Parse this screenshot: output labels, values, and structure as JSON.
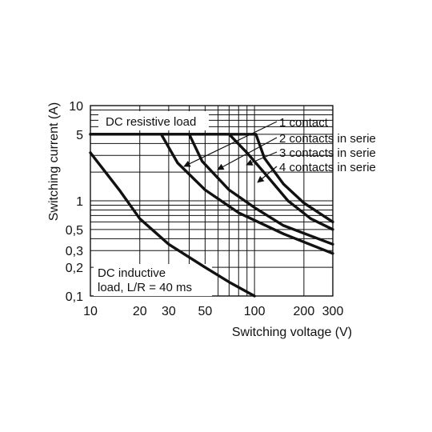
{
  "chart_data": {
    "type": "line",
    "x_scale": "log",
    "y_scale": "log",
    "xlim": [
      10,
      300
    ],
    "ylim": [
      0.1,
      10
    ],
    "xlabel": "Switching voltage (V)",
    "ylabel": "Switching current (A)",
    "x_ticks": [
      {
        "v": 10,
        "label": "10"
      },
      {
        "v": 20,
        "label": "20"
      },
      {
        "v": 30,
        "label": "30"
      },
      {
        "v": 50,
        "label": "50"
      },
      {
        "v": 100,
        "label": "100"
      },
      {
        "v": 200,
        "label": "200"
      },
      {
        "v": 300,
        "label": "300"
      }
    ],
    "y_ticks": [
      {
        "v": 10,
        "label": "10"
      },
      {
        "v": 5,
        "label": "5"
      },
      {
        "v": 1,
        "label": "1"
      },
      {
        "v": 0.5,
        "label": "0,5"
      },
      {
        "v": 0.3,
        "label": "0,3"
      },
      {
        "v": 0.2,
        "label": "0,2"
      },
      {
        "v": 0.1,
        "label": "0,1"
      }
    ],
    "x_grid": [
      20,
      30,
      40,
      50,
      60,
      70,
      80,
      90,
      100,
      200,
      300
    ],
    "y_grid": [
      0.2,
      0.3,
      0.4,
      0.5,
      0.6,
      0.7,
      0.8,
      0.9,
      1,
      2,
      3,
      4,
      5,
      6,
      7,
      8,
      9,
      10
    ],
    "series": [
      {
        "name": "1 contact",
        "x": [
          10,
          70,
          90,
          120,
          160,
          220,
          300
        ],
        "y": [
          5,
          5,
          3.2,
          1.8,
          1.0,
          0.65,
          0.5
        ]
      },
      {
        "name": "2 contacts in serie",
        "x": [
          10,
          102,
          115,
          150,
          200,
          300
        ],
        "y": [
          5,
          5,
          2.8,
          1.5,
          0.95,
          0.6
        ]
      },
      {
        "name": "3 contacts in serie",
        "x": [
          40,
          48,
          70,
          100,
          150,
          300
        ],
        "y": [
          5,
          2.6,
          1.3,
          0.85,
          0.55,
          0.35
        ]
      },
      {
        "name": "4 contacts in serie",
        "x": [
          27,
          34,
          50,
          80,
          150,
          300
        ],
        "y": [
          5,
          2.5,
          1.3,
          0.75,
          0.45,
          0.28
        ]
      },
      {
        "name": "DC inductive load, L/R = 40 ms",
        "x": [
          10,
          15,
          20,
          30,
          50,
          70,
          100
        ],
        "y": [
          3.2,
          1.3,
          0.65,
          0.35,
          0.2,
          0.14,
          0.1
        ]
      }
    ],
    "annotations": {
      "dc_resistive": "DC resistive load",
      "dc_inductive_line1": "DC inductive",
      "dc_inductive_line2": "load, L/R = 40 ms",
      "legend_1": "1 contact",
      "legend_2": "2 contacts in serie",
      "legend_3": "3 contacts in serie",
      "legend_4": "4 contacts in serie"
    },
    "grid": true,
    "colors": {
      "line": "#111111",
      "grid": "#111111",
      "background": "#ffffff"
    }
  }
}
